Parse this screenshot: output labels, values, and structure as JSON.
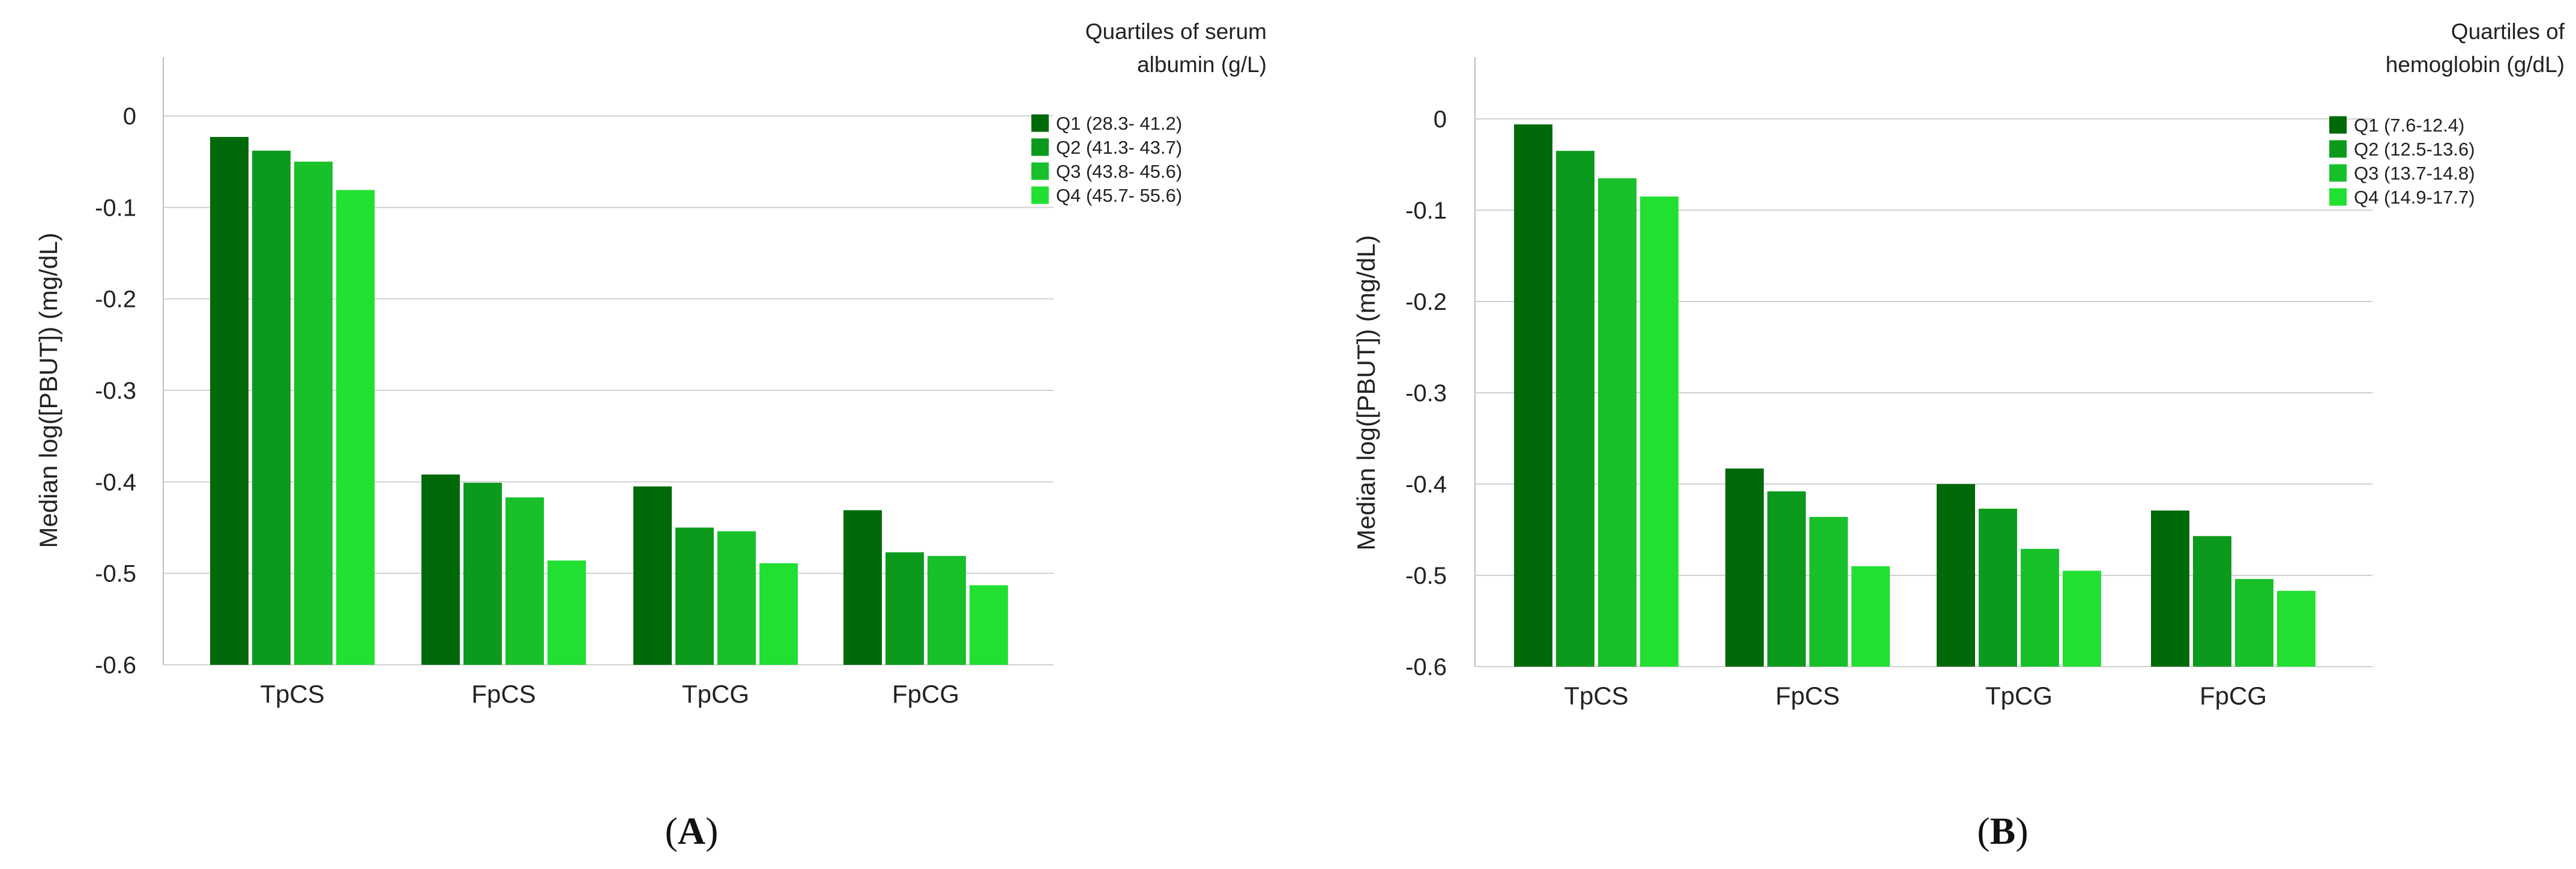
{
  "chart_data": [
    {
      "type": "bar",
      "panel_label": "A",
      "ylabel": "Median log([PBUT]) (mg/dL)",
      "ylim": [
        -0.6,
        0.0
      ],
      "yticks": [
        "0",
        "-0.1",
        "-0.2",
        "-0.3",
        "-0.4",
        "-0.5",
        "-0.6"
      ],
      "grid": true,
      "legend_position": "top-right",
      "legend_title": [
        "Quartiles of serum",
        "albumin (g/L)"
      ],
      "categories": [
        "TpCS",
        "FpCS",
        "TpCG",
        "FpCG"
      ],
      "series": [
        {
          "name": "Q1 (28.3- 41.2)",
          "color": "#006a0a",
          "values": [
            -0.023,
            -0.392,
            -0.405,
            -0.431
          ]
        },
        {
          "name": "Q2 (41.3- 43.7)",
          "color": "#0c9a1c",
          "values": [
            -0.038,
            -0.401,
            -0.45,
            -0.477
          ]
        },
        {
          "name": "Q3 (43.8- 45.6)",
          "color": "#18c02a",
          "values": [
            -0.05,
            -0.417,
            -0.454,
            -0.481
          ]
        },
        {
          "name": "Q4 (45.7- 55.6)",
          "color": "#22e032",
          "values": [
            -0.081,
            -0.486,
            -0.489,
            -0.513
          ]
        }
      ]
    },
    {
      "type": "bar",
      "panel_label": "B",
      "ylabel": "Median log([PBUT]) (mg/dL)",
      "ylim": [
        -0.6,
        0.0
      ],
      "yticks": [
        "0",
        "-0.1",
        "-0.2",
        "-0.3",
        "-0.4",
        "-0.5",
        "-0.6"
      ],
      "grid": true,
      "legend_position": "top-right",
      "legend_title": [
        "Quartiles of",
        "hemoglobin (g/dL)"
      ],
      "categories": [
        "TpCS",
        "FpCS",
        "TpCG",
        "FpCG"
      ],
      "series": [
        {
          "name": "Q1 (7.6-12.4)",
          "color": "#006a0a",
          "values": [
            -0.006,
            -0.383,
            -0.4,
            -0.429
          ]
        },
        {
          "name": "Q2 (12.5-13.6)",
          "color": "#0c9a1c",
          "values": [
            -0.035,
            -0.408,
            -0.427,
            -0.457
          ]
        },
        {
          "name": "Q3 (13.7-14.8)",
          "color": "#18c02a",
          "values": [
            -0.065,
            -0.436,
            -0.471,
            -0.504
          ]
        },
        {
          "name": "Q4 (14.9-17.7)",
          "color": "#22e032",
          "values": [
            -0.085,
            -0.49,
            -0.495,
            -0.517
          ]
        }
      ]
    }
  ]
}
